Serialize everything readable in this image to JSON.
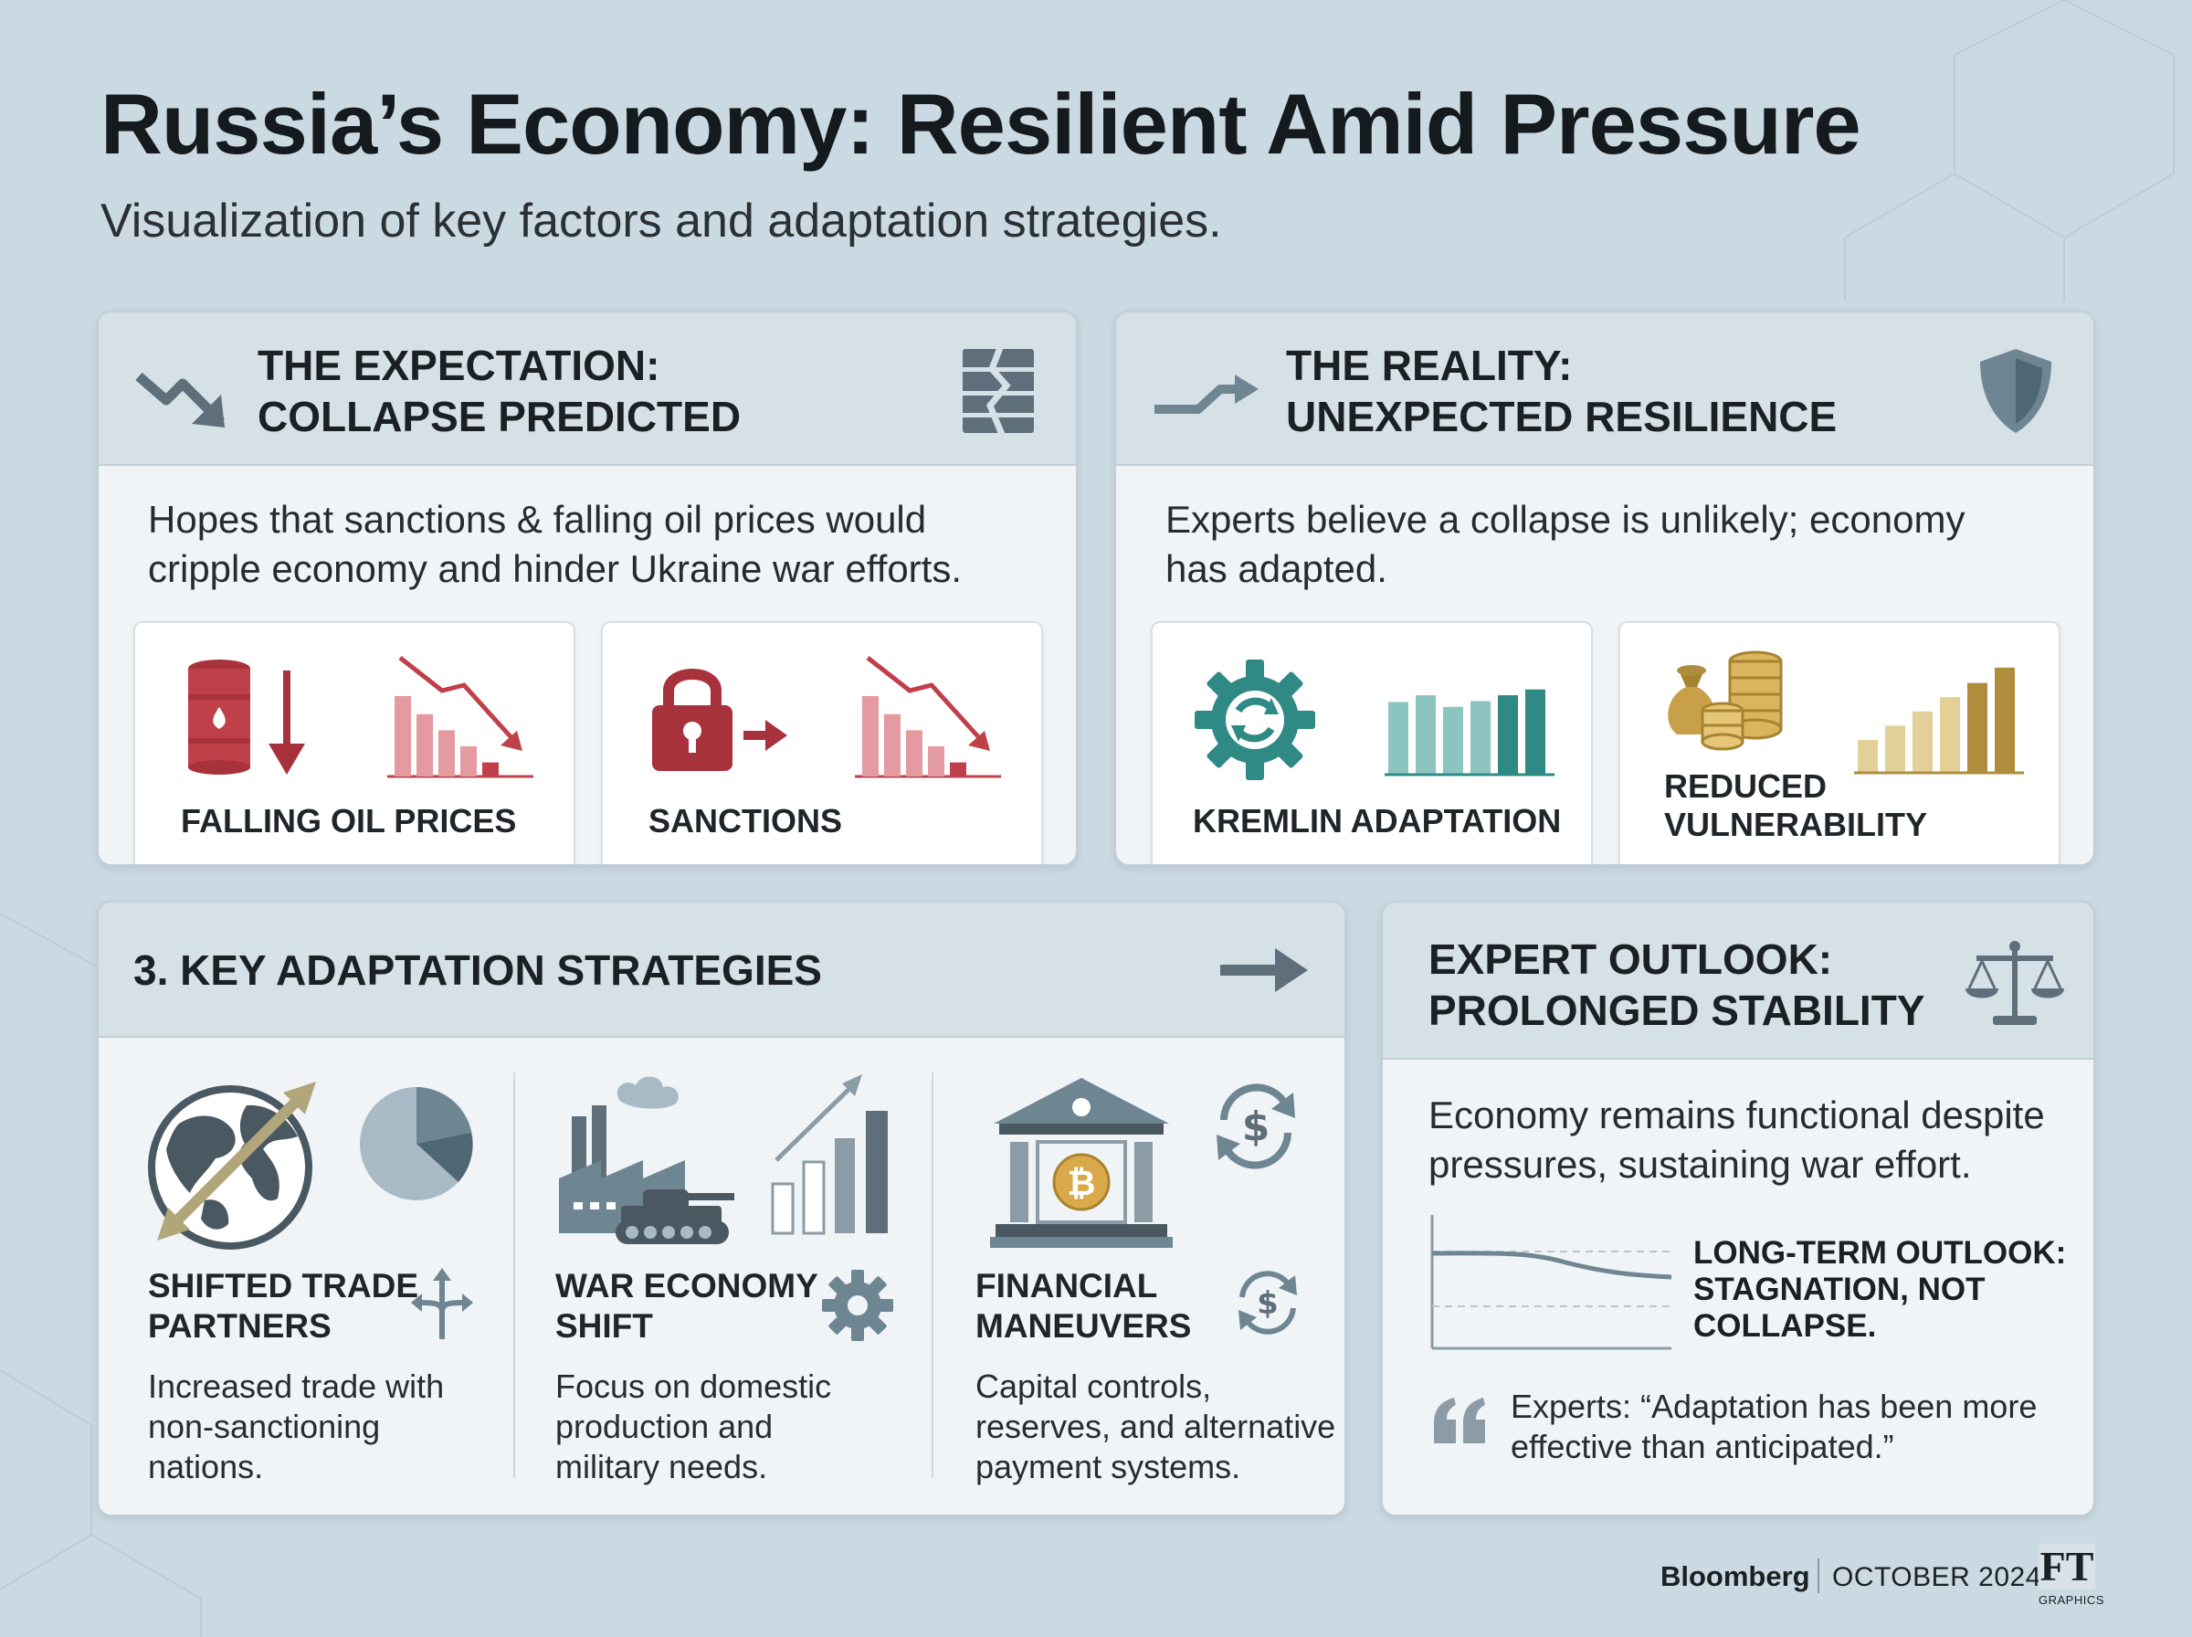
{
  "header": {
    "title": "Russia’s Economy: Resilient Amid Pressure",
    "subtitle": "Visualization of key factors and adaptation strategies."
  },
  "expectation": {
    "title_line1": "THE EXPECTATION:",
    "title_line2": "COLLAPSE PREDICTED",
    "body_line1": "Hopes that sanctions & falling oil prices would",
    "body_line2": "cripple economy and hinder Ukraine war efforts.",
    "items": [
      {
        "label": "FALLING OIL PRICES",
        "bars": [
          0.8,
          0.62,
          0.46,
          0.3,
          0.14
        ]
      },
      {
        "label": "SANCTIONS",
        "bars": [
          0.8,
          0.62,
          0.46,
          0.3,
          0.14
        ]
      }
    ]
  },
  "reality": {
    "title_line1": "THE REALITY:",
    "title_line2": "UNEXPECTED RESILIENCE",
    "body_line1": "Experts believe a collapse is unlikely; economy",
    "body_line2": "has adapted.",
    "items": [
      {
        "label_line1": "KREMLIN ADAPTATION",
        "bars": [
          0.75,
          0.82,
          0.7,
          0.76,
          0.82,
          0.88
        ]
      },
      {
        "label_line1": "REDUCED",
        "label_line2": "VULNERABILITY",
        "bars": [
          0.3,
          0.43,
          0.56,
          0.69,
          0.82,
          0.96
        ]
      }
    ]
  },
  "strategies": {
    "title": "3. KEY ADAPTATION STRATEGIES",
    "items": [
      {
        "title_line1": "SHIFTED TRADE",
        "title_line2": "PARTNERS",
        "desc": [
          "Increased trade with",
          "non-sanctioning",
          "nations."
        ]
      },
      {
        "title_line1": "WAR ECONOMY",
        "title_line2": "SHIFT",
        "desc": [
          "Focus on domestic",
          "production and",
          "military needs."
        ]
      },
      {
        "title_line1": "FINANCIAL",
        "title_line2": "MANEUVERS",
        "desc": [
          "Capital controls,",
          "reserves, and alternative",
          "payment systems."
        ]
      }
    ]
  },
  "outlook": {
    "title_line1": "EXPERT OUTLOOK:",
    "title_line2": "PROLONGED STABILITY",
    "body_line1": "Economy remains functional despite",
    "body_line2": "pressures, sustaining war effort.",
    "label_line1": "LONG-TERM OUTLOOK:",
    "label_line2": "STAGNATION, NOT",
    "label_line3": "COLLAPSE.",
    "quote_line1": "Experts: “Adaptation has been more",
    "quote_line2": "effective than anticipated.”"
  },
  "footer": {
    "brand": "Bloomberg",
    "date": "OCTOBER 2024",
    "logo_text": "FT",
    "logo_sub": "GRAPHICS"
  },
  "colors": {
    "red": "#c0404a",
    "red_light": "#e39aa0",
    "teal": "#2f8a86",
    "teal_light": "#8cc4c0",
    "gold": "#b08d3c",
    "gold_light": "#e3cf98",
    "slate": "#5d6e7a"
  }
}
